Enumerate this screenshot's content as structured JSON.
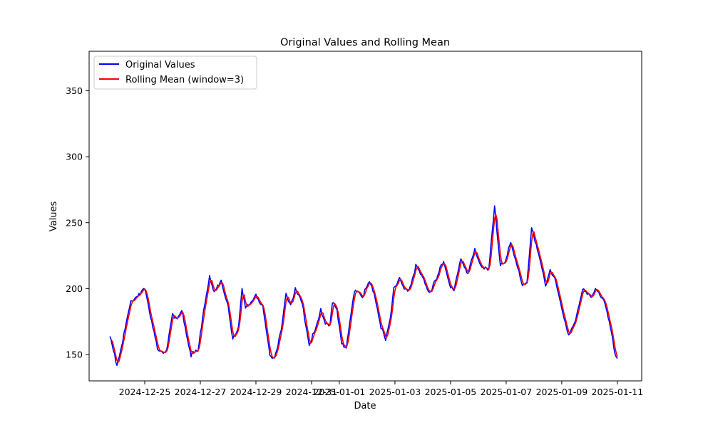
{
  "chart_data": {
    "type": "line",
    "title": "Original Values and Rolling Mean",
    "xlabel": "Date",
    "ylabel": "Values",
    "x_start": "2024-12-23T18:00",
    "x_end": "2025-01-11T00:00",
    "xlim": [
      "2024-12-23T00:00",
      "2025-01-11T21:00"
    ],
    "ylim": [
      130,
      380
    ],
    "x_ticks": [
      "2024-12-25",
      "2024-12-27",
      "2024-12-29",
      "2024-12-31",
      "2025-01-01",
      "2025-01-03",
      "2025-01-05",
      "2025-01-07",
      "2025-01-09",
      "2025-01-11"
    ],
    "y_ticks": [
      150,
      200,
      250,
      300,
      350
    ],
    "grid": false,
    "legend_position": "upper-left",
    "series": [
      {
        "name": "Original Values",
        "color": "#0000ff",
        "keypoints": [
          [
            "2024-12-23T18:00",
            163
          ],
          [
            "2024-12-24T00:00",
            142
          ],
          [
            "2024-12-24T06:00",
            165
          ],
          [
            "2024-12-24T12:00",
            190
          ],
          [
            "2024-12-24T18:00",
            196
          ],
          [
            "2024-12-25T00:00",
            199
          ],
          [
            "2024-12-25T06:00",
            176
          ],
          [
            "2024-12-25T12:00",
            152
          ],
          [
            "2024-12-25T18:00",
            150
          ],
          [
            "2024-12-26T00:00",
            182
          ],
          [
            "2024-12-26T04:00",
            176
          ],
          [
            "2024-12-26T08:00",
            183
          ],
          [
            "2024-12-26T16:00",
            150
          ],
          [
            "2024-12-26T22:00",
            152
          ],
          [
            "2024-12-27T03:00",
            185
          ],
          [
            "2024-12-27T08:00",
            208
          ],
          [
            "2024-12-27T12:00",
            196
          ],
          [
            "2024-12-27T18:00",
            207
          ],
          [
            "2024-12-28T00:00",
            185
          ],
          [
            "2024-12-28T04:00",
            161
          ],
          [
            "2024-12-28T09:00",
            172
          ],
          [
            "2024-12-28T12:00",
            201
          ],
          [
            "2024-12-28T15:00",
            185
          ],
          [
            "2024-12-28T18:00",
            187
          ],
          [
            "2024-12-29T00:00",
            196
          ],
          [
            "2024-12-29T06:00",
            185
          ],
          [
            "2024-12-29T12:00",
            150
          ],
          [
            "2024-12-29T16:00",
            148
          ],
          [
            "2024-12-29T22:00",
            168
          ],
          [
            "2024-12-30T02:00",
            196
          ],
          [
            "2024-12-30T06:00",
            188
          ],
          [
            "2024-12-30T10:00",
            199
          ],
          [
            "2024-12-30T16:00",
            188
          ],
          [
            "2024-12-30T22:00",
            158
          ],
          [
            "2024-12-31T04:00",
            170
          ],
          [
            "2024-12-31T08:00",
            183
          ],
          [
            "2024-12-31T12:00",
            175
          ],
          [
            "2024-12-31T16:00",
            172
          ],
          [
            "2024-12-31T18:00",
            189
          ],
          [
            "2024-12-31T22:00",
            183
          ],
          [
            "2025-01-01T02:00",
            160
          ],
          [
            "2025-01-01T06:00",
            155
          ],
          [
            "2025-01-01T12:00",
            191
          ],
          [
            "2025-01-01T14:00",
            200
          ],
          [
            "2025-01-01T20:00",
            195
          ],
          [
            "2025-01-02T02:00",
            204
          ],
          [
            "2025-01-02T06:00",
            197
          ],
          [
            "2025-01-02T12:00",
            171
          ],
          [
            "2025-01-02T16:00",
            160
          ],
          [
            "2025-01-02T20:00",
            178
          ],
          [
            "2025-01-02T23:00",
            201
          ],
          [
            "2025-01-03T04:00",
            207
          ],
          [
            "2025-01-03T08:00",
            198
          ],
          [
            "2025-01-03T12:00",
            199
          ],
          [
            "2025-01-03T18:00",
            217
          ],
          [
            "2025-01-04T00:00",
            207
          ],
          [
            "2025-01-04T06:00",
            198
          ],
          [
            "2025-01-04T12:00",
            207
          ],
          [
            "2025-01-04T18:00",
            222
          ],
          [
            "2025-01-05T00:00",
            200
          ],
          [
            "2025-01-05T03:00",
            198
          ],
          [
            "2025-01-05T09:00",
            224
          ],
          [
            "2025-01-05T15:00",
            211
          ],
          [
            "2025-01-05T21:00",
            229
          ],
          [
            "2025-01-06T03:00",
            217
          ],
          [
            "2025-01-06T09:00",
            213
          ],
          [
            "2025-01-06T14:00",
            263
          ],
          [
            "2025-01-06T19:00",
            218
          ],
          [
            "2025-01-06T23:00",
            218
          ],
          [
            "2025-01-07T04:00",
            236
          ],
          [
            "2025-01-07T09:00",
            220
          ],
          [
            "2025-01-07T14:00",
            201
          ],
          [
            "2025-01-07T18:00",
            205
          ],
          [
            "2025-01-07T22:00",
            247
          ],
          [
            "2025-01-08T04:00",
            225
          ],
          [
            "2025-01-08T10:00",
            202
          ],
          [
            "2025-01-08T14:00",
            215
          ],
          [
            "2025-01-08T18:00",
            207
          ],
          [
            "2025-01-09T00:00",
            185
          ],
          [
            "2025-01-09T06:00",
            165
          ],
          [
            "2025-01-09T12:00",
            175
          ],
          [
            "2025-01-09T18:00",
            201
          ],
          [
            "2025-01-09T22:00",
            197
          ],
          [
            "2025-01-10T02:00",
            192
          ],
          [
            "2025-01-10T06:00",
            201
          ],
          [
            "2025-01-10T12:00",
            192
          ],
          [
            "2025-01-10T18:00",
            170
          ],
          [
            "2025-01-10T22:00",
            151
          ],
          [
            "2025-01-11T02:00",
            145
          ],
          [
            "2025-01-11T06:00",
            151
          ]
        ]
      },
      {
        "name": "Rolling Mean (window=3)",
        "color": "#ff0000"
      }
    ]
  }
}
